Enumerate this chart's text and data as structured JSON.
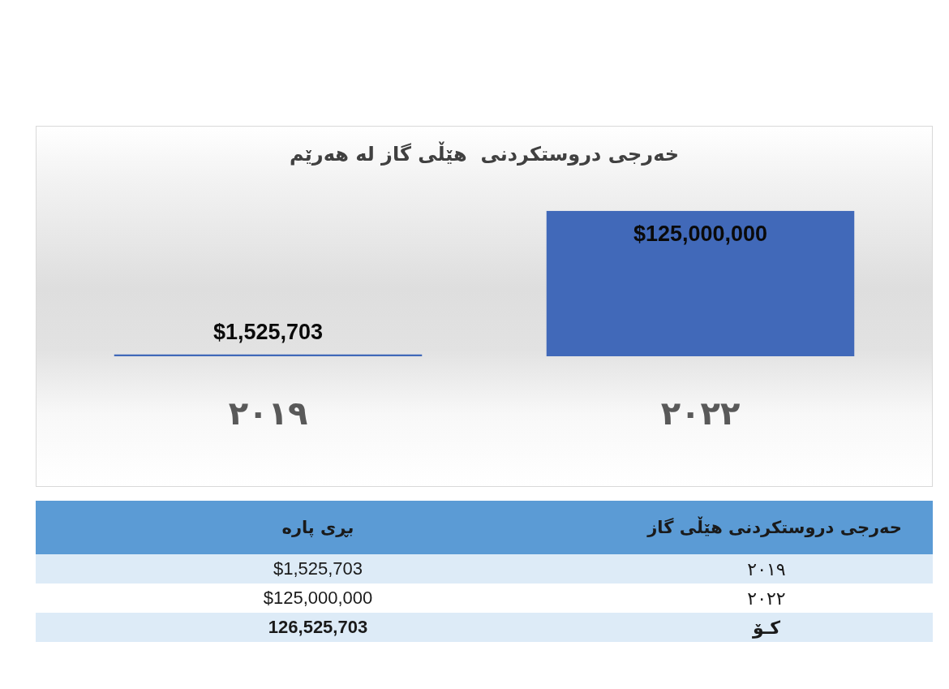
{
  "chart_data": {
    "type": "bar",
    "title": "خەرجی دروستکردنی  هێڵی گاز لە هەرێم",
    "categories": [
      "٢٠١٩",
      "٢٠٢٢"
    ],
    "values": [
      1525703,
      125000000
    ],
    "color": "#4169b9",
    "value_labels": [
      "$1,525,703",
      "$125,000,000"
    ],
    "tick_labels": "x",
    "annotations": [
      "حەرجی دروستکردنی  هێڵی گاز",
      "بڕی پارە",
      "کـۆ",
      "126,525,703"
    ]
  }
}
